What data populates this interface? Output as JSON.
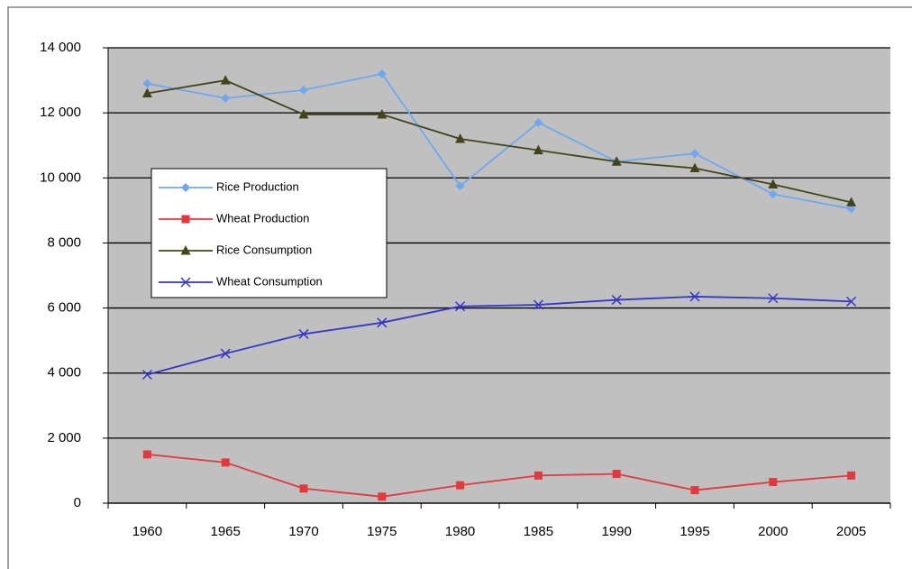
{
  "chart_data": {
    "type": "line",
    "categories": [
      "1960",
      "1965",
      "1970",
      "1975",
      "1980",
      "1985",
      "1990",
      "1995",
      "2000",
      "2005"
    ],
    "series": [
      {
        "name": "Rice Production",
        "color": "#6fa8ef",
        "marker": "diamond",
        "values": [
          12900,
          12450,
          12700,
          13200,
          9750,
          11700,
          10500,
          10750,
          9500,
          9050
        ]
      },
      {
        "name": "Wheat Production",
        "color": "#e03a3e",
        "marker": "square",
        "values": [
          1500,
          1250,
          450,
          200,
          550,
          850,
          900,
          400,
          650,
          850
        ]
      },
      {
        "name": "Rice Consumption",
        "color": "#44441a",
        "marker": "triangle",
        "values": [
          12600,
          13000,
          11950,
          11950,
          11200,
          10850,
          10500,
          10300,
          9800,
          9250
        ]
      },
      {
        "name": "Wheat Consumption",
        "color": "#3535c8",
        "marker": "cross",
        "values": [
          3950,
          4600,
          5200,
          5550,
          6050,
          6100,
          6250,
          6350,
          6300,
          6200
        ]
      }
    ],
    "ylim": [
      0,
      14000
    ],
    "yticks": [
      0,
      {
        "value": 2000,
        "label": "2 000"
      },
      {
        "value": 4000,
        "label": "4 000"
      },
      {
        "value": 6000,
        "label": "6 000"
      },
      {
        "value": 8000,
        "label": "8 000"
      },
      {
        "value": 10000,
        "label": "10 000"
      },
      {
        "value": 12000,
        "label": "12 000"
      },
      {
        "value": 14000,
        "label": "14 000"
      }
    ],
    "grid": true,
    "plot_background": "#c0c0c0"
  }
}
